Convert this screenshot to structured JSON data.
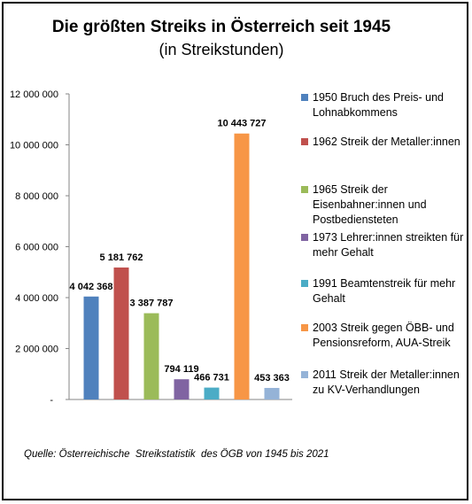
{
  "chart_data": {
    "type": "bar",
    "title": "Die größten Streiks in Österreich seit 1945",
    "subtitle": "(in Streikstunden)",
    "source": "Quelle: Österreichische  Streikstatistik  des ÖGB von 1945 bis 2021",
    "ylim": [
      0,
      12000000
    ],
    "yticks": [
      {
        "value": 0,
        "label": "-"
      },
      {
        "value": 2000000,
        "label": "2 000 000"
      },
      {
        "value": 4000000,
        "label": "4 000 000"
      },
      {
        "value": 6000000,
        "label": "6 000 000"
      },
      {
        "value": 8000000,
        "label": "8 000 000"
      },
      {
        "value": 10000000,
        "label": "10 000 000"
      },
      {
        "value": 12000000,
        "label": "12 000 000"
      }
    ],
    "grid": false,
    "legend_position": "right",
    "series": [
      {
        "name": "1950 Bruch des Preis- und Lohnabkommens",
        "value": 4042368,
        "label": "4 042 368",
        "color": "#4F81BD"
      },
      {
        "name": "1962 Streik der Metaller:innen",
        "value": 5181762,
        "label": "5 181 762",
        "color": "#C0504D"
      },
      {
        "name": "1965 Streik der Eisenbahner:innen und Postbediensteten",
        "value": 3387787,
        "label": "3 387 787",
        "color": "#9BBB59"
      },
      {
        "name": "1973 Lehrer:innen streikten für mehr Gehalt",
        "value": 794119,
        "label": "794 119",
        "color": "#8064A2"
      },
      {
        "name": "1991 Beamtenstreik für mehr Gehalt",
        "value": 466731,
        "label": "466 731",
        "color": "#4BACC6"
      },
      {
        "name": "2003 Streik gegen ÖBB- und Pensionsreform, AUA-Streik",
        "value": 10443727,
        "label": "10 443 727",
        "color": "#F79646"
      },
      {
        "name": "2011 Streik der Metaller:innen zu KV-Verhandlungen",
        "value": 453363,
        "label": "453 363",
        "color": "#95B3D7"
      }
    ]
  }
}
